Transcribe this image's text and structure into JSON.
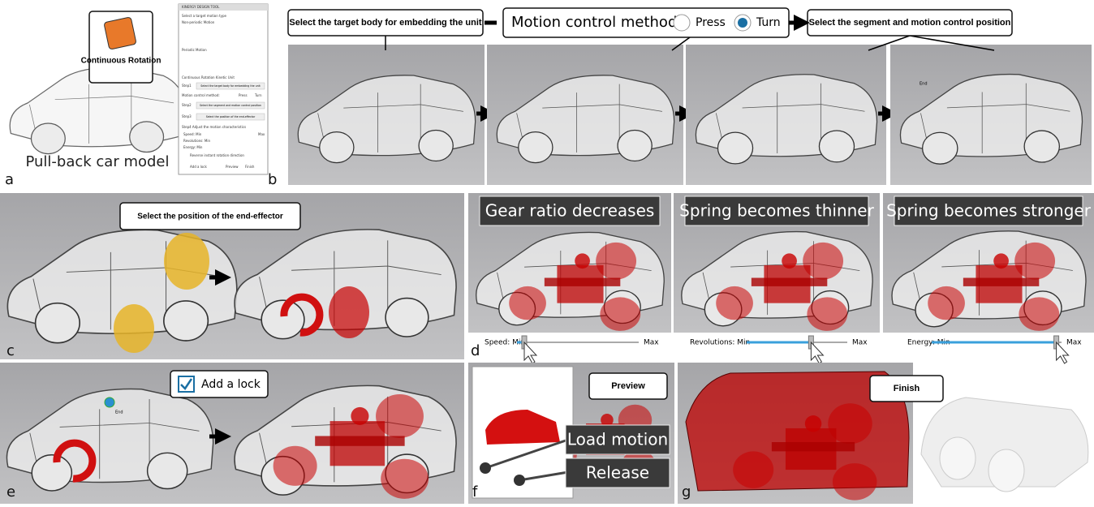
{
  "panel_a": {
    "letter": "a",
    "callout": "Continuous Rotation",
    "caption": "Pull-back car model",
    "dialog": {
      "title": "KINERGY DESIGN TOOL",
      "heading": "Select a target motion type",
      "non_periodic": "Non-periodic Motion",
      "periodic": "Periodic Motion",
      "unit": "Continuous Rotation Kinetic Unit",
      "step1": "Step1",
      "step1_button": "Select the target body  for embedding the unit",
      "method": "Motion control method:",
      "press": "Press",
      "turn": "Turn",
      "step2": "Step2",
      "step2_button": "Select the segment and motion control position",
      "step3": "Step3",
      "step3_button": "Select the position of the end-effector",
      "step4": "Step4   Adjust the motion characteristics",
      "speed": "Speed: Min",
      "revolutions": "Revolutions: Min",
      "energy": "Energy: Min",
      "max": "Max",
      "reverse": "Reverse instant rotation direction",
      "lock": "Add a lock",
      "preview": "Preview",
      "finish": "Finish"
    }
  },
  "panel_b": {
    "letter": "b",
    "label1": "Select the target body  for embedding the unit",
    "method": "Motion control method:",
    "press": "Press",
    "turn": "Turn",
    "label2": "Select the segment and motion control position",
    "end": "End"
  },
  "panel_c": {
    "letter": "c",
    "label": "Select the position of the end-effector"
  },
  "panel_d": {
    "letter": "d",
    "captions": [
      "Gear ratio decreases",
      "Spring becomes thinner",
      "Spring becomes stronger"
    ],
    "sliders": [
      {
        "min": "Speed: Min",
        "max": "Max"
      },
      {
        "min": "Revolutions: Min",
        "max": "Max"
      },
      {
        "min": "Energy: Min",
        "max": "Max"
      }
    ]
  },
  "panel_e": {
    "letter": "e",
    "checkbox": "Add a lock",
    "end": "End"
  },
  "panel_f": {
    "letter": "f",
    "preview": "Preview",
    "load": "Load motion",
    "release": "Release"
  },
  "panel_g": {
    "letter": "g",
    "finish": "Finish"
  }
}
